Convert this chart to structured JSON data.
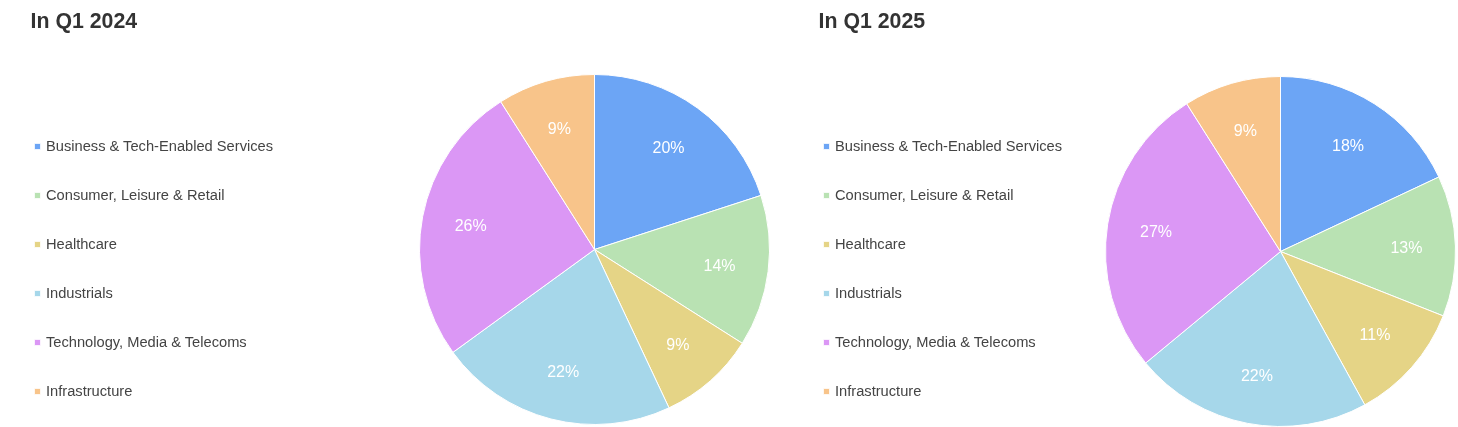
{
  "chart_data": [
    {
      "type": "pie",
      "title": "In Q1 2024",
      "categories": [
        "Business & Tech-Enabled Services",
        "Consumer, Leisure & Retail",
        "Healthcare",
        "Industrials",
        "Technology, Media & Telecoms",
        "Infrastructure"
      ],
      "values": [
        20,
        14,
        9,
        22,
        26,
        9
      ],
      "value_labels": [
        "20%",
        "14%",
        "9%",
        "22%",
        "26%",
        "9%"
      ],
      "colors": [
        "#6ca5f5",
        "#b9e2b3",
        "#e5d486",
        "#a6d7ea",
        "#db97f5",
        "#f8c48a"
      ],
      "legend": "left"
    },
    {
      "type": "pie",
      "title": "In Q1 2025",
      "categories": [
        "Business & Tech-Enabled Services",
        "Consumer, Leisure & Retail",
        "Healthcare",
        "Industrials",
        "Technology, Media & Telecoms",
        "Infrastructure"
      ],
      "values": [
        18,
        13,
        11,
        22,
        27,
        9
      ],
      "value_labels": [
        "18%",
        "13%",
        "11%",
        "22%",
        "27%",
        "9%"
      ],
      "colors": [
        "#6ca5f5",
        "#b9e2b3",
        "#e5d486",
        "#a6d7ea",
        "#db97f5",
        "#f8c48a"
      ],
      "legend": "left"
    }
  ]
}
